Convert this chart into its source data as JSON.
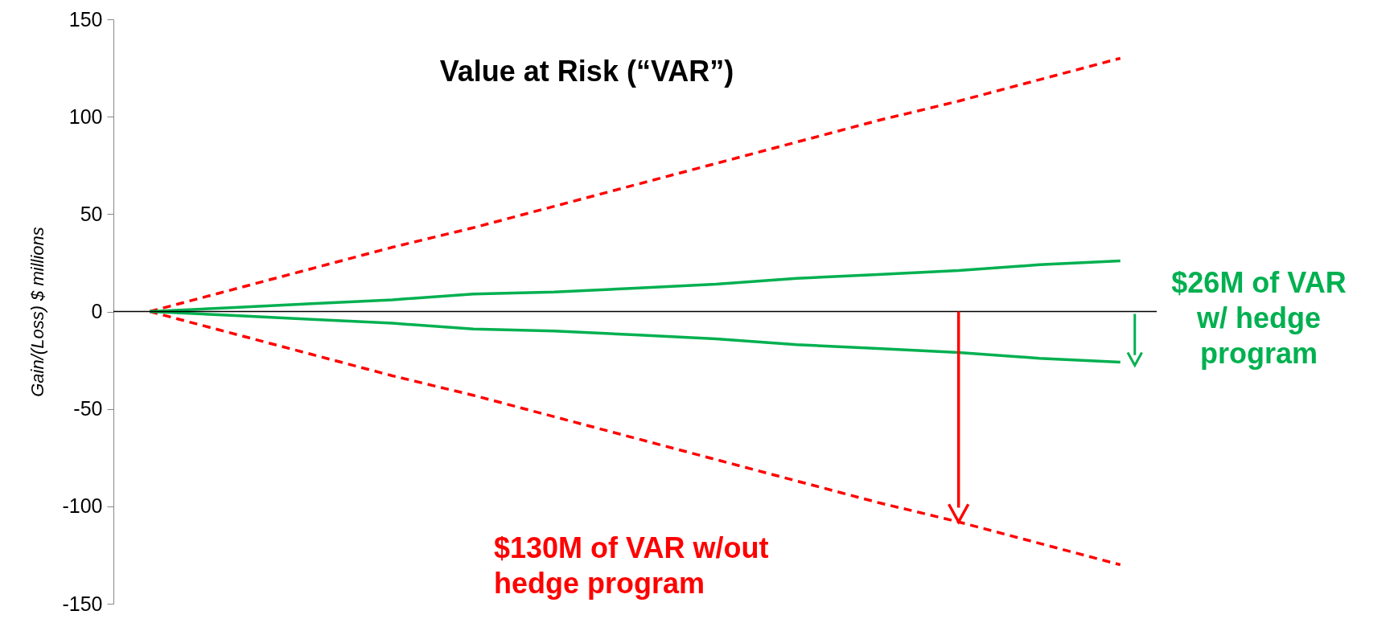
{
  "chart_data": {
    "type": "line",
    "title": "Value at Risk (“VAR”)",
    "ylabel": "Gain/(Loss) $ millions",
    "categories": [
      null,
      null,
      null,
      null,
      null,
      null,
      null,
      null,
      null,
      null,
      null,
      null,
      null
    ],
    "series": [
      {
        "color": "#ff0000",
        "line_style": "dashed",
        "values": [
          0,
          11,
          22,
          33,
          43,
          54,
          65,
          76,
          87,
          98,
          108,
          119,
          130
        ]
      },
      {
        "color": "#ff0000",
        "line_style": "dashed",
        "values": [
          0,
          -11,
          -22,
          -33,
          -43,
          -54,
          -65,
          -76,
          -87,
          -98,
          -108,
          -119,
          -130
        ]
      },
      {
        "color": "#00b050",
        "line_style": "solid",
        "values": [
          0,
          2,
          4,
          6,
          9,
          10,
          12,
          14,
          17,
          19,
          21,
          24,
          26
        ]
      },
      {
        "color": "#00b050",
        "line_style": "solid",
        "values": [
          0,
          -2,
          -4,
          -6,
          -9,
          -10,
          -12,
          -14,
          -17,
          -19,
          -21,
          -24,
          -26
        ]
      }
    ],
    "ylim": [
      -150,
      150
    ],
    "yticks": [
      -150,
      -100,
      -50,
      0,
      50,
      100,
      150
    ],
    "ref_lines": [
      {
        "axis": "y",
        "value": 0,
        "color": "#000000"
      }
    ],
    "annotations": [
      "$26M of VAR w/ hedge program",
      "$130M of VAR w/out hedge program"
    ],
    "tick_labels": "y",
    "grid": false,
    "marker": "none"
  }
}
